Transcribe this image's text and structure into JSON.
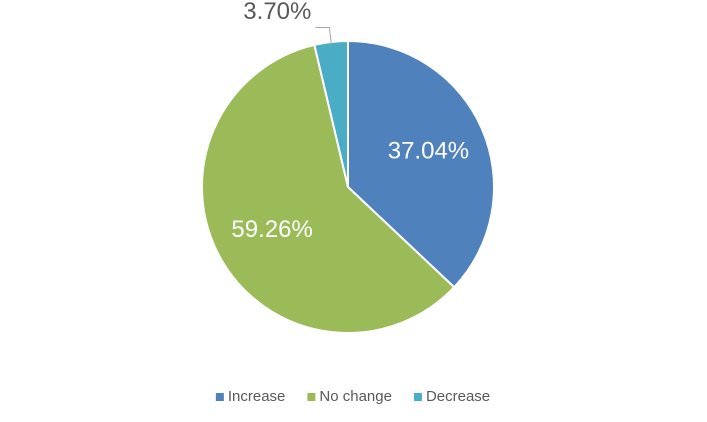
{
  "chart_data": {
    "type": "pie",
    "categories": [
      "Increase",
      "No change",
      "Decrease"
    ],
    "values": [
      37.04,
      59.26,
      3.7
    ],
    "value_labels": [
      "37.04%",
      "59.26%",
      "3.70%"
    ],
    "colors": [
      "#4f81bd",
      "#9bbb59",
      "#4bacc6"
    ],
    "legend": "bottom"
  }
}
